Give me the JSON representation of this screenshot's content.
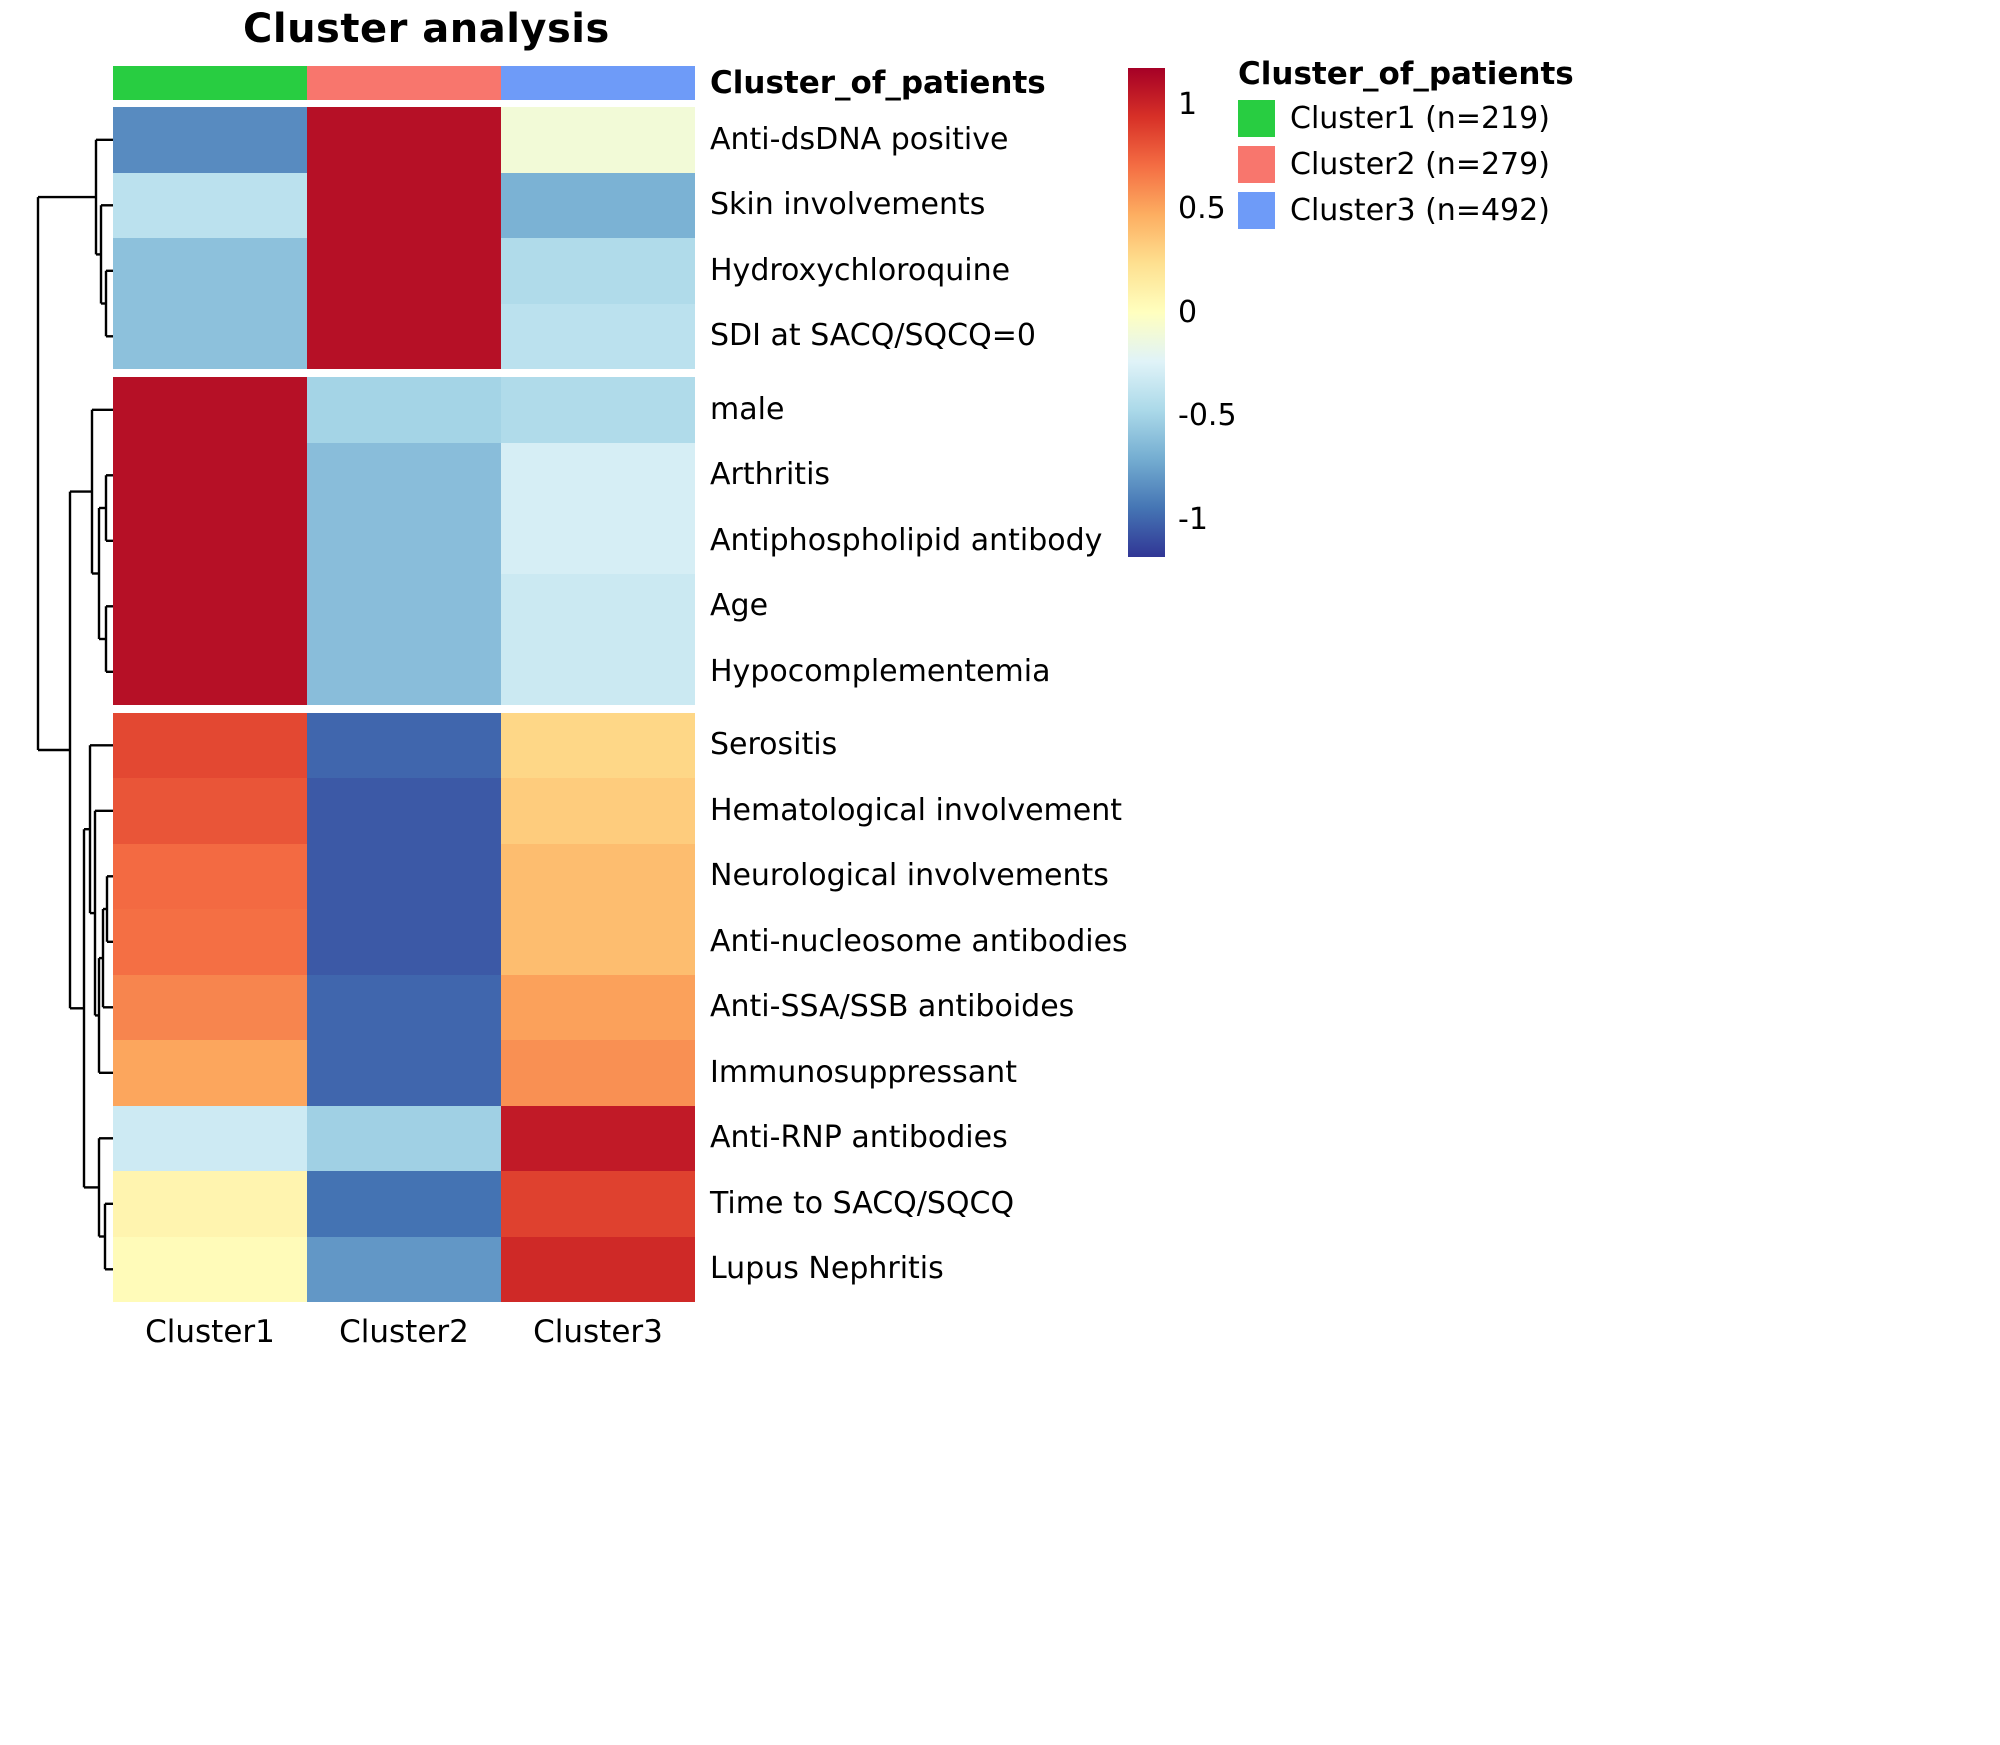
{
  "title": "Cluster analysis",
  "legend": {
    "title": "Cluster_of_patients"
  },
  "annotation": {
    "label": "Cluster_of_patients",
    "clusters": [
      {
        "name": "Cluster1",
        "color": "#28CD41",
        "legend_label": "Cluster1 (n=219)",
        "n": 219
      },
      {
        "name": "Cluster2",
        "color": "#F8766D",
        "legend_label": "Cluster2 (n=279)",
        "n": 279
      },
      {
        "name": "Cluster3",
        "color": "#6E9BF8",
        "legend_label": "Cluster3 (n=492)",
        "n": 492
      }
    ]
  },
  "chart_data": {
    "type": "heatmap",
    "title": "Cluster analysis",
    "columns": [
      "Cluster1",
      "Cluster2",
      "Cluster3"
    ],
    "rows": [
      "Anti-dsDNA positive",
      "Skin involvements",
      "Hydroxychloroquine",
      "SDI at SACQ/SQCQ=0",
      "male",
      "Arthritis",
      "Antiphospholipid antibody",
      "Age",
      "Hypocomplementemia",
      "Serositis",
      "Hematological involvement",
      "Neurological involvements",
      "Anti-nucleosome antibodies",
      "Anti-SSA/SSB antiboides",
      "Immunosuppressant",
      "Anti-RNP antibodies",
      "Time to SACQ/SQCQ",
      "Lupus Nephritis"
    ],
    "values": [
      [
        -0.85,
        1.1,
        -0.1
      ],
      [
        -0.4,
        1.1,
        -0.68
      ],
      [
        -0.6,
        1.1,
        -0.45
      ],
      [
        -0.6,
        1.1,
        -0.4
      ],
      [
        1.1,
        -0.5,
        -0.45
      ],
      [
        1.1,
        -0.62,
        -0.28
      ],
      [
        1.1,
        -0.62,
        -0.28
      ],
      [
        1.1,
        -0.62,
        -0.33
      ],
      [
        1.1,
        -0.62,
        -0.33
      ],
      [
        0.85,
        -1.0,
        0.28
      ],
      [
        0.8,
        -1.05,
        0.33
      ],
      [
        0.72,
        -1.05,
        0.4
      ],
      [
        0.7,
        -1.05,
        0.4
      ],
      [
        0.62,
        -1.0,
        0.52
      ],
      [
        0.5,
        -1.0,
        0.58
      ],
      [
        -0.32,
        -0.52,
        1.05
      ],
      [
        0.08,
        -0.95,
        0.88
      ],
      [
        0.03,
        -0.8,
        0.98
      ]
    ],
    "row_groups": [
      [
        0,
        3
      ],
      [
        4,
        8
      ],
      [
        9,
        17
      ]
    ],
    "colormap": {
      "colors": [
        "#313695",
        "#4575B4",
        "#74ADD1",
        "#ABD9E9",
        "#E0F3F8",
        "#FFFFBF",
        "#FEE090",
        "#FDAE61",
        "#F46D43",
        "#D73027",
        "#A50026"
      ],
      "vmin": -1.18,
      "vmax": 1.18
    },
    "colorbar_ticks": [
      {
        "label": "1",
        "value": 1
      },
      {
        "label": "0.5",
        "value": 0.5
      },
      {
        "label": "0",
        "value": 0
      },
      {
        "label": "-0.5",
        "value": -0.5
      },
      {
        "label": "-1",
        "value": -1
      }
    ],
    "legend_position": "right",
    "dendrogram_segments": [
      [
        106,
        270.8,
        113,
        270.8
      ],
      [
        106,
        336.3,
        113,
        336.3
      ],
      [
        106,
        270.8,
        106,
        336.3
      ],
      [
        101,
        205.3,
        113,
        205.3
      ],
      [
        101,
        303.5,
        106,
        303.5
      ],
      [
        101,
        205.3,
        101,
        303.5
      ],
      [
        96,
        139.8,
        113,
        139.8
      ],
      [
        96,
        254.4,
        101,
        254.4
      ],
      [
        96,
        139.8,
        96,
        254.4
      ],
      [
        106,
        475.3,
        113,
        475.3
      ],
      [
        106,
        540.8,
        113,
        540.8
      ],
      [
        106,
        475.3,
        106,
        540.8
      ],
      [
        106,
        606.3,
        113,
        606.3
      ],
      [
        106,
        671.8,
        113,
        671.8
      ],
      [
        106,
        606.3,
        106,
        671.8
      ],
      [
        99,
        508,
        106,
        508
      ],
      [
        99,
        639,
        106,
        639
      ],
      [
        99,
        508,
        99,
        639
      ],
      [
        92,
        409.8,
        113,
        409.8
      ],
      [
        92,
        573.5,
        99,
        573.5
      ],
      [
        92,
        409.8,
        92,
        573.5
      ],
      [
        107,
        876.3,
        113,
        876.3
      ],
      [
        107,
        941.8,
        113,
        941.8
      ],
      [
        107,
        876.3,
        107,
        941.8
      ],
      [
        103,
        1007.3,
        113,
        1007.3
      ],
      [
        103,
        909,
        107,
        909
      ],
      [
        103,
        909,
        103,
        1007.3
      ],
      [
        99,
        1072.8,
        113,
        1072.8
      ],
      [
        99,
        958.1,
        103,
        958.1
      ],
      [
        99,
        958.1,
        99,
        1072.8
      ],
      [
        95,
        810.8,
        113,
        810.8
      ],
      [
        95,
        1015.4,
        99,
        1015.4
      ],
      [
        95,
        810.8,
        95,
        1015.4
      ],
      [
        90,
        745.3,
        113,
        745.3
      ],
      [
        90,
        913.1,
        95,
        913.1
      ],
      [
        90,
        745.3,
        90,
        913.1
      ],
      [
        105,
        1203.8,
        113,
        1203.8
      ],
      [
        105,
        1269.3,
        113,
        1269.3
      ],
      [
        105,
        1203.8,
        105,
        1269.3
      ],
      [
        99,
        1138.3,
        113,
        1138.3
      ],
      [
        99,
        1236.5,
        105,
        1236.5
      ],
      [
        99,
        1138.3,
        99,
        1236.5
      ],
      [
        84,
        829.2,
        90,
        829.2
      ],
      [
        84,
        1187.4,
        99,
        1187.4
      ],
      [
        84,
        829.2,
        84,
        1187.4
      ],
      [
        70,
        491.6,
        92,
        491.6
      ],
      [
        70,
        1008.3,
        84,
        1008.3
      ],
      [
        70,
        491.6,
        70,
        1008.3
      ],
      [
        38,
        197.1,
        96,
        197.1
      ],
      [
        38,
        750,
        70,
        750
      ],
      [
        38,
        197.1,
        38,
        750
      ]
    ]
  }
}
